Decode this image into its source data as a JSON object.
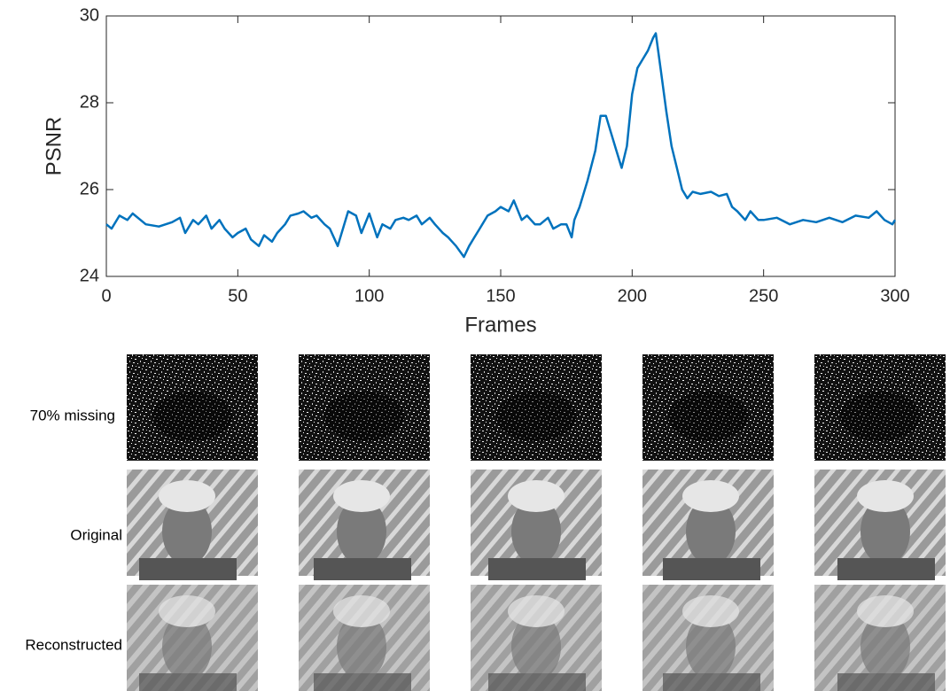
{
  "chart_data": {
    "type": "line",
    "xlabel": "Frames",
    "ylabel": "PSNR",
    "color": "#0072bd",
    "x": [
      0,
      2,
      5,
      8,
      10,
      13,
      15,
      20,
      25,
      28,
      30,
      33,
      35,
      38,
      40,
      43,
      45,
      48,
      50,
      53,
      55,
      58,
      60,
      63,
      65,
      68,
      70,
      73,
      75,
      78,
      80,
      83,
      85,
      88,
      90,
      92,
      95,
      97,
      100,
      103,
      105,
      108,
      110,
      113,
      115,
      118,
      120,
      123,
      125,
      128,
      130,
      133,
      136,
      138,
      140,
      142,
      145,
      148,
      150,
      153,
      155,
      158,
      160,
      163,
      165,
      168,
      170,
      173,
      175,
      177,
      178,
      180,
      183,
      186,
      188,
      190,
      192,
      194,
      196,
      198,
      200,
      202,
      204,
      206,
      208,
      209,
      211,
      213,
      215,
      217,
      219,
      221,
      223,
      226,
      230,
      233,
      236,
      238,
      240,
      243,
      245,
      248,
      250,
      255,
      260,
      265,
      270,
      275,
      280,
      285,
      290,
      293,
      296,
      299,
      300
    ],
    "values": [
      25.2,
      25.1,
      25.4,
      25.3,
      25.45,
      25.3,
      25.2,
      25.15,
      25.25,
      25.35,
      25.0,
      25.3,
      25.2,
      25.4,
      25.1,
      25.3,
      25.1,
      24.9,
      25.0,
      25.1,
      24.85,
      24.7,
      24.95,
      24.8,
      25.0,
      25.2,
      25.4,
      25.45,
      25.5,
      25.35,
      25.4,
      25.2,
      25.1,
      24.7,
      25.1,
      25.5,
      25.4,
      25.0,
      25.45,
      24.9,
      25.2,
      25.1,
      25.3,
      25.35,
      25.3,
      25.4,
      25.2,
      25.35,
      25.2,
      25.0,
      24.9,
      24.7,
      24.45,
      24.7,
      24.9,
      25.1,
      25.4,
      25.5,
      25.6,
      25.5,
      25.75,
      25.3,
      25.4,
      25.2,
      25.2,
      25.35,
      25.1,
      25.2,
      25.2,
      24.9,
      25.3,
      25.6,
      26.2,
      26.9,
      27.7,
      27.7,
      27.3,
      26.9,
      26.5,
      27.0,
      28.2,
      28.8,
      29.0,
      29.2,
      29.5,
      29.6,
      28.7,
      27.8,
      27.0,
      26.5,
      26.0,
      25.8,
      25.95,
      25.9,
      25.95,
      25.85,
      25.9,
      25.6,
      25.5,
      25.3,
      25.5,
      25.3,
      25.3,
      25.35,
      25.2,
      25.3,
      25.25,
      25.35,
      25.25,
      25.4,
      25.35,
      25.5,
      25.3,
      25.2,
      25.3
    ],
    "xlim": [
      0,
      300
    ],
    "xticks": [
      0,
      50,
      100,
      150,
      200,
      250,
      300
    ],
    "ylim": [
      24,
      30
    ],
    "yticks": [
      24,
      26,
      28,
      30
    ]
  },
  "image_grid": {
    "row_labels": [
      "70% missing",
      "Original",
      "Reconstructed"
    ]
  }
}
